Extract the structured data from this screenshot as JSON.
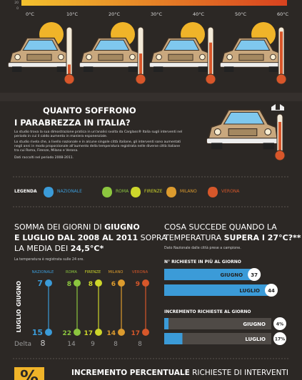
{
  "scale": {
    "ticks": [
      "0°C",
      "10°C",
      "20°C",
      "30°C",
      "40°C",
      "50°C",
      "60°C"
    ],
    "axis": [
      "20",
      "0"
    ]
  },
  "intro": {
    "title": [
      "QUANTO SOFFRONO",
      "I PARABREZZA IN ITALIA?"
    ],
    "paragraphs": [
      "Lo studio trova la sua dimostrazione pratica in un'analisi svolta da Carglass® Italia sugli interventi nel periodo in cui il caldo aumenta in maniera esponenziale.",
      "Lo studio rivela che, a livello nazionale e in alcune singole città italiane, gli interventi sono aumentati negli anni in modo proporzionale all'aumento della temperatura registrata nelle diverse città italiane tra cui Roma, Firenze, Milano e Verona."
    ],
    "note": "Dati raccolti nel periodo 2008-2011."
  },
  "legend": {
    "label": "LEGENDA",
    "items": [
      {
        "name": "NAZIONALE",
        "color": "#3b9bd8"
      },
      {
        "name": "ROMA",
        "color": "#8cc63f"
      },
      {
        "name": "FIRENZE",
        "color": "#cdd62b"
      },
      {
        "name": "MILANO",
        "color": "#dc9b2e"
      },
      {
        "name": "VERONA",
        "color": "#d6572a"
      }
    ]
  },
  "days": {
    "title": [
      [
        {
          "text": "SOMMA DEI GIORNI DI ",
          "bold": false
        },
        {
          "text": "GIUGNO",
          "bold": true
        }
      ],
      [
        {
          "text": "E LUGLIO DAL 2008 AL 2011",
          "bold": true
        },
        {
          "text": " SOPRA",
          "bold": false
        }
      ],
      [
        {
          "text": "LA MEDIA DEI ",
          "bold": false
        },
        {
          "text": "24,5°C*",
          "bold": true
        }
      ]
    ],
    "subtitle": "La temperatura è registrata sulle 24 ore.",
    "rows": [
      "GIUGNO",
      "LUGLIO"
    ],
    "delta_label": "Delta",
    "giugno": [
      7,
      8,
      8,
      6,
      9
    ],
    "luglio": [
      15,
      22,
      17,
      14,
      17
    ],
    "delta": [
      8,
      14,
      9,
      8,
      8
    ]
  },
  "temp": {
    "title": [
      [
        {
          "text": "COSA SUCCEDE QUANDO LA",
          "bold": false
        }
      ],
      [
        {
          "text": "TEMPERATURA ",
          "bold": false
        },
        {
          "text": "SUPERA I 27°C?**",
          "bold": true
        }
      ]
    ],
    "subtitle": "Dato Nazionale dalle città prese a campione.",
    "requests": {
      "title": "N° RICHIESTE IN PIÙ AL GIORNO",
      "categories": [
        "GIUGNO",
        "LUGLIO"
      ],
      "values": [
        37,
        44
      ]
    },
    "increase": {
      "title": "INCREMENTO RICHIESTE AL GIORNO",
      "categories": [
        "GIUGNO",
        "LUGLIO"
      ],
      "values": [
        4,
        17
      ],
      "value_labels": [
        "4%",
        "17%"
      ]
    }
  },
  "footer": {
    "title": [
      {
        "text": "INCREMENTO PERCENTUALE",
        "bold": true
      },
      {
        "text": " RICHIESTE DI INTERVENTI",
        "bold": false
      }
    ],
    "icon": "%"
  }
}
